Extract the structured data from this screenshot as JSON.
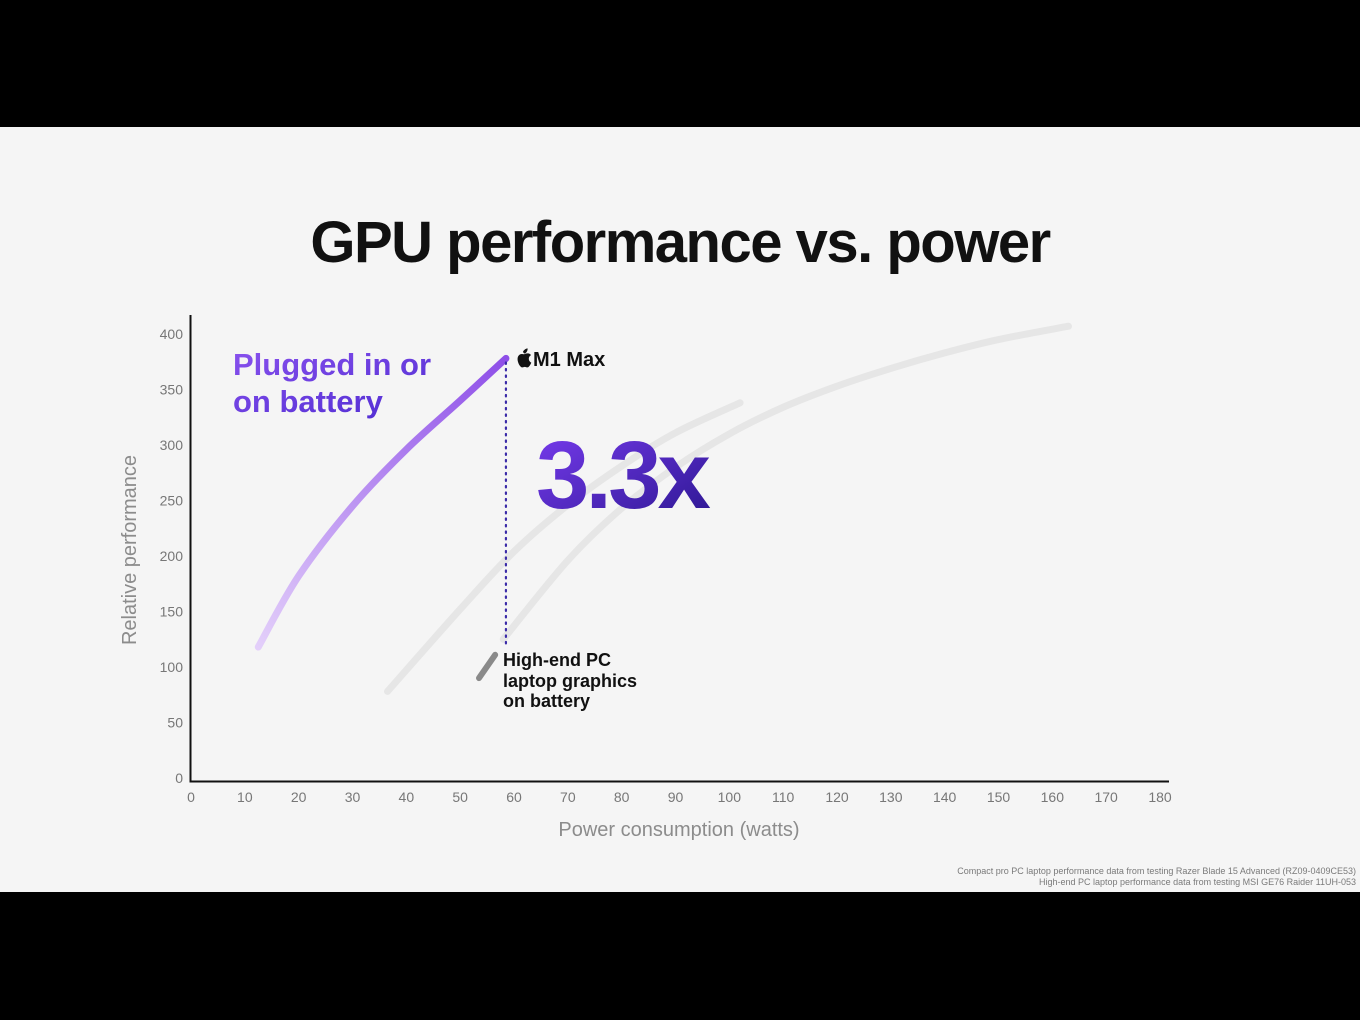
{
  "slide": {
    "title": "GPU performance vs. power",
    "footnotes": [
      "Compact pro PC laptop performance data from testing Razer Blade 15 Advanced (RZ09-0409CE53)",
      "High-end PC laptop performance data from testing MSI GE76 Raider 11UH-053"
    ]
  },
  "chart_data": {
    "type": "line",
    "title": "GPU performance vs. power",
    "xlabel": "Power consumption (watts)",
    "ylabel": "Relative performance",
    "xlim": [
      0,
      180
    ],
    "ylim": [
      0,
      400
    ],
    "xticks": [
      0,
      10,
      20,
      30,
      40,
      50,
      60,
      70,
      80,
      90,
      100,
      110,
      120,
      130,
      140,
      150,
      160,
      170,
      180
    ],
    "yticks": [
      0,
      50,
      100,
      150,
      200,
      250,
      300,
      350,
      400
    ],
    "grid": false,
    "series": [
      {
        "name": "Plugged in or on battery",
        "label_lines": [
          "Plugged in or",
          "on battery"
        ],
        "end_label": "M1 Max",
        "color_start": "#e3cffa",
        "color_end": "#8e4fe8",
        "points": [
          [
            12.5,
            118
          ],
          [
            20,
            182
          ],
          [
            30,
            245
          ],
          [
            40,
            296
          ],
          [
            50,
            340
          ],
          [
            58.5,
            378
          ]
        ]
      },
      {
        "name": "",
        "color": "#e6e6e6",
        "points": [
          [
            36.5,
            78
          ],
          [
            50,
            152
          ],
          [
            60,
            204
          ],
          [
            70,
            246
          ],
          [
            80,
            281
          ],
          [
            90,
            311
          ],
          [
            102,
            338
          ]
        ]
      },
      {
        "name": "",
        "color": "#e6e6e6",
        "points": [
          [
            58,
            125
          ],
          [
            70,
            196
          ],
          [
            80,
            243
          ],
          [
            90,
            280
          ],
          [
            100,
            310
          ],
          [
            110,
            334
          ],
          [
            120,
            353
          ],
          [
            130,
            369
          ],
          [
            140,
            383
          ],
          [
            150,
            395
          ],
          [
            163,
            407
          ]
        ]
      },
      {
        "name": "High-end PC laptop graphics on battery",
        "label_lines": [
          "High-end PC",
          "laptop graphics",
          "on battery"
        ],
        "color": "#8a8a8a",
        "points": [
          [
            53.5,
            90
          ],
          [
            56.5,
            111
          ]
        ]
      }
    ],
    "annotations": [
      {
        "text": "3.3x",
        "color_start": "#7a3cf0",
        "color_end": "#2a168f",
        "dotted_line": {
          "x": 58.5,
          "y_from": 118,
          "y_to": 378,
          "color": "#3b2ba8"
        }
      }
    ]
  }
}
